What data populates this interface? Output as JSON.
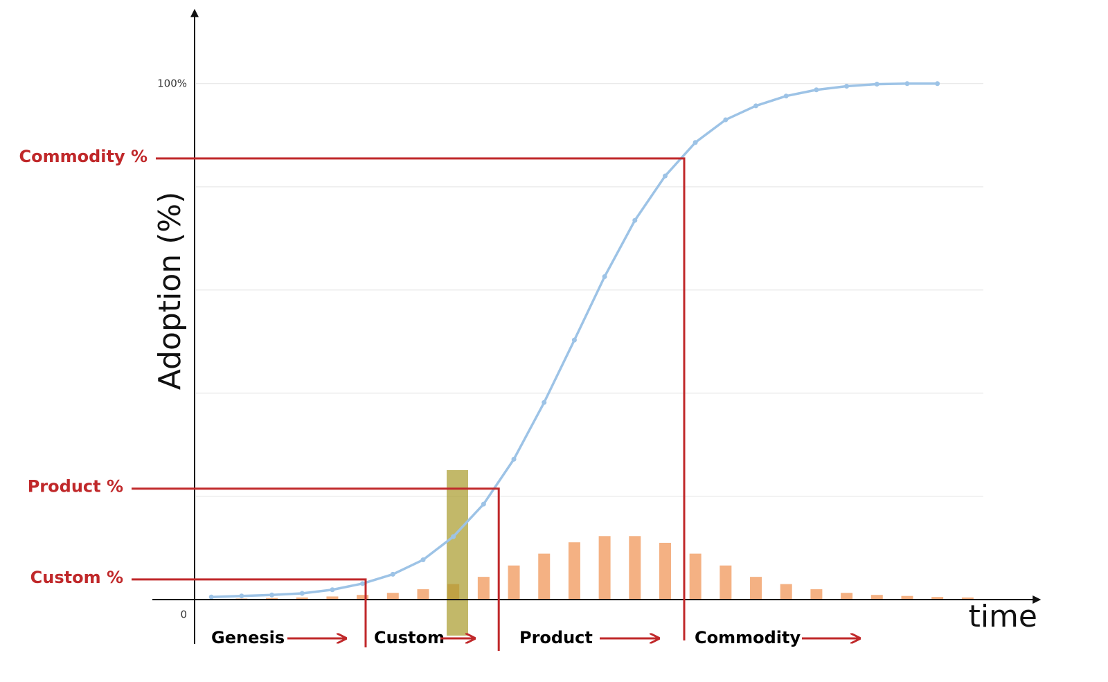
{
  "chart_data": {
    "type": "line",
    "y_label": "Adoption (%)",
    "x_label": "time",
    "x": [
      0,
      1,
      2,
      3,
      4,
      5,
      6,
      7,
      8,
      9,
      10,
      11,
      12,
      13,
      14,
      15,
      16,
      17,
      18,
      19,
      20,
      21,
      22,
      23,
      24,
      25
    ],
    "line": {
      "color": "#9dc3e6",
      "values": [
        0.5,
        0.7,
        0.9,
        1.2,
        1.9,
        3.1,
        4.9,
        7.7,
        12.2,
        18.5,
        27.2,
        38.2,
        50.3,
        62.6,
        73.5,
        82.1,
        88.6,
        93.0,
        95.7,
        97.6,
        98.8,
        99.5,
        99.9,
        100,
        100,
        null
      ]
    },
    "bars": {
      "color": "#f4b183",
      "values": [
        0.1,
        0.2,
        0.3,
        0.4,
        0.6,
        0.9,
        1.3,
        2,
        3,
        4.4,
        6.6,
        8.9,
        11.1,
        12.3,
        12.3,
        11,
        8.9,
        6.6,
        4.4,
        3,
        2,
        1.3,
        0.9,
        0.7,
        0.5,
        0.4
      ]
    },
    "xlim": [
      -1.95,
      27.35
    ],
    "ylim": [
      -8.6,
      114.2
    ],
    "yticks": [
      {
        "value": 0,
        "label": "0"
      },
      {
        "value": 100,
        "label": "100%"
      }
    ],
    "gridlines": [
      20,
      40,
      60,
      80,
      100
    ],
    "thresholds": [
      {
        "label": "Commodity %",
        "x": 15.63,
        "y": 85.5
      },
      {
        "label": "Product %",
        "x": 9.5,
        "y": 21.5
      },
      {
        "label": "Custom %",
        "x": 5.1,
        "y": 3.9
      }
    ],
    "phases": [
      "Genesis",
      "Custom",
      "Product",
      "Commodity"
    ],
    "annotation_color": "#c0282a"
  }
}
